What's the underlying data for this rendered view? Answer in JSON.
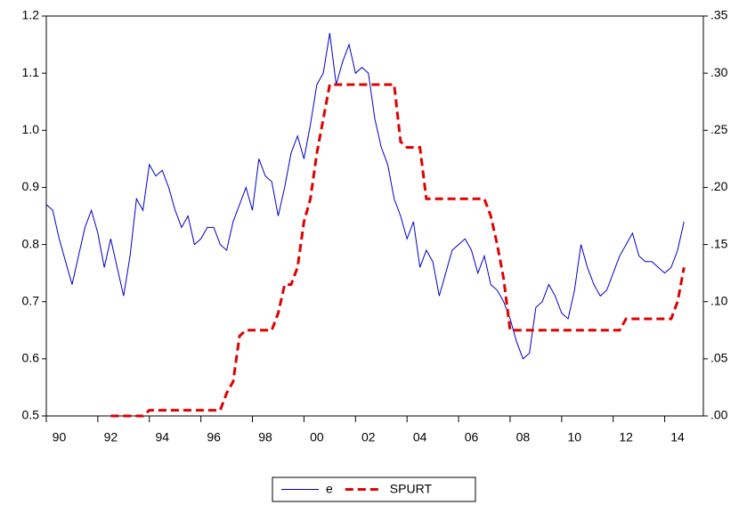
{
  "chart_data": {
    "type": "line",
    "x": [
      1990,
      1990.25,
      1990.5,
      1990.75,
      1991,
      1991.25,
      1991.5,
      1991.75,
      1992,
      1992.25,
      1992.5,
      1992.75,
      1993,
      1993.25,
      1993.5,
      1993.75,
      1994,
      1994.25,
      1994.5,
      1994.75,
      1995,
      1995.25,
      1995.5,
      1995.75,
      1996,
      1996.25,
      1996.5,
      1996.75,
      1997,
      1997.25,
      1997.5,
      1997.75,
      1998,
      1998.25,
      1998.5,
      1998.75,
      1999,
      1999.25,
      1999.5,
      1999.75,
      2000,
      2000.25,
      2000.5,
      2000.75,
      2001,
      2001.25,
      2001.5,
      2001.75,
      2002,
      2002.25,
      2002.5,
      2002.75,
      2003,
      2003.25,
      2003.5,
      2003.75,
      2004,
      2004.25,
      2004.5,
      2004.75,
      2005,
      2005.25,
      2005.5,
      2005.75,
      2006,
      2006.25,
      2006.5,
      2006.75,
      2007,
      2007.25,
      2007.5,
      2007.75,
      2008,
      2008.25,
      2008.5,
      2008.75,
      2009,
      2009.25,
      2009.5,
      2009.75,
      2010,
      2010.25,
      2010.5,
      2010.75,
      2011,
      2011.25,
      2011.5,
      2011.75,
      2012,
      2012.25,
      2012.5,
      2012.75,
      2013,
      2013.25,
      2013.5,
      2013.75,
      2014,
      2014.25,
      2014.5,
      2014.75
    ],
    "series": [
      {
        "name": "e",
        "color": "#0000cc",
        "axis": "y",
        "values": [
          0.87,
          0.86,
          0.81,
          0.77,
          0.73,
          0.78,
          0.83,
          0.86,
          0.82,
          0.76,
          0.81,
          0.76,
          0.71,
          0.78,
          0.88,
          0.86,
          0.94,
          0.92,
          0.93,
          0.9,
          0.86,
          0.83,
          0.85,
          0.8,
          0.81,
          0.83,
          0.83,
          0.8,
          0.79,
          0.84,
          0.87,
          0.9,
          0.86,
          0.95,
          0.92,
          0.91,
          0.85,
          0.9,
          0.96,
          0.99,
          0.95,
          1.01,
          1.08,
          1.1,
          1.17,
          1.08,
          1.12,
          1.15,
          1.1,
          1.11,
          1.1,
          1.02,
          0.97,
          0.94,
          0.88,
          0.85,
          0.81,
          0.84,
          0.76,
          0.79,
          0.77,
          0.71,
          0.75,
          0.79,
          0.8,
          0.81,
          0.79,
          0.75,
          0.78,
          0.73,
          0.72,
          0.7,
          0.67,
          0.63,
          0.6,
          0.61,
          0.69,
          0.7,
          0.73,
          0.71,
          0.68,
          0.67,
          0.72,
          0.8,
          0.76,
          0.73,
          0.71,
          0.72,
          0.75,
          0.78,
          0.8,
          0.82,
          0.78,
          0.77,
          0.77,
          0.76,
          0.75,
          0.76,
          0.79,
          0.84
        ]
      },
      {
        "name": "SPURT",
        "color": "#e00000",
        "axis": "y2",
        "values": [
          null,
          null,
          null,
          null,
          null,
          null,
          null,
          null,
          null,
          null,
          0,
          0,
          0,
          0,
          0,
          0,
          0.005,
          0.005,
          0.005,
          0.005,
          0.005,
          0.005,
          0.005,
          0.005,
          0.005,
          0.005,
          0.005,
          0.005,
          0.02,
          0.03,
          0.07,
          0.075,
          0.075,
          0.075,
          0.075,
          0.075,
          0.09,
          0.115,
          0.115,
          0.13,
          0.17,
          0.19,
          0.23,
          0.26,
          0.29,
          0.29,
          0.29,
          0.29,
          0.29,
          0.29,
          0.29,
          0.29,
          0.29,
          0.29,
          0.29,
          0.24,
          0.235,
          0.235,
          0.235,
          0.19,
          0.19,
          0.19,
          0.19,
          0.19,
          0.19,
          0.19,
          0.19,
          0.19,
          0.19,
          0.175,
          0.15,
          0.12,
          0.075,
          0.075,
          0.075,
          0.075,
          0.075,
          0.075,
          0.075,
          0.075,
          0.075,
          0.075,
          0.075,
          0.075,
          0.075,
          0.075,
          0.075,
          0.075,
          0.075,
          0.075,
          0.085,
          0.085,
          0.085,
          0.085,
          0.085,
          0.085,
          0.085,
          0.085,
          0.1,
          0.13
        ]
      }
    ],
    "xlim": [
      1990,
      2015.5
    ],
    "xticks": [
      {
        "value": 1990,
        "label": "90"
      },
      {
        "value": 1992,
        "label": "92"
      },
      {
        "value": 1994,
        "label": "94"
      },
      {
        "value": 1996,
        "label": "96"
      },
      {
        "value": 1998,
        "label": "98"
      },
      {
        "value": 2000,
        "label": "00"
      },
      {
        "value": 2002,
        "label": "02"
      },
      {
        "value": 2004,
        "label": "04"
      },
      {
        "value": 2006,
        "label": "06"
      },
      {
        "value": 2008,
        "label": "08"
      },
      {
        "value": 2010,
        "label": "10"
      },
      {
        "value": 2012,
        "label": "12"
      },
      {
        "value": 2014,
        "label": "14"
      }
    ],
    "ylim": [
      0.5,
      1.2
    ],
    "yticks": [
      0.5,
      0.6,
      0.7,
      0.8,
      0.9,
      {
        "value": 1,
        "label": "1.0"
      },
      1.1,
      1.2
    ],
    "y2lim": [
      0,
      0.35
    ],
    "y2ticks": [
      {
        "value": 0,
        "label": ".00"
      },
      {
        "value": 0.05,
        "label": ".05"
      },
      {
        "value": 0.1,
        "label": ".10"
      },
      {
        "value": 0.15,
        "label": ".15"
      },
      {
        "value": 0.2,
        "label": ".20"
      },
      {
        "value": 0.25,
        "label": ".25"
      },
      {
        "value": 0.3,
        "label": ".30"
      },
      {
        "value": 0.35,
        "label": ".35"
      }
    ]
  }
}
